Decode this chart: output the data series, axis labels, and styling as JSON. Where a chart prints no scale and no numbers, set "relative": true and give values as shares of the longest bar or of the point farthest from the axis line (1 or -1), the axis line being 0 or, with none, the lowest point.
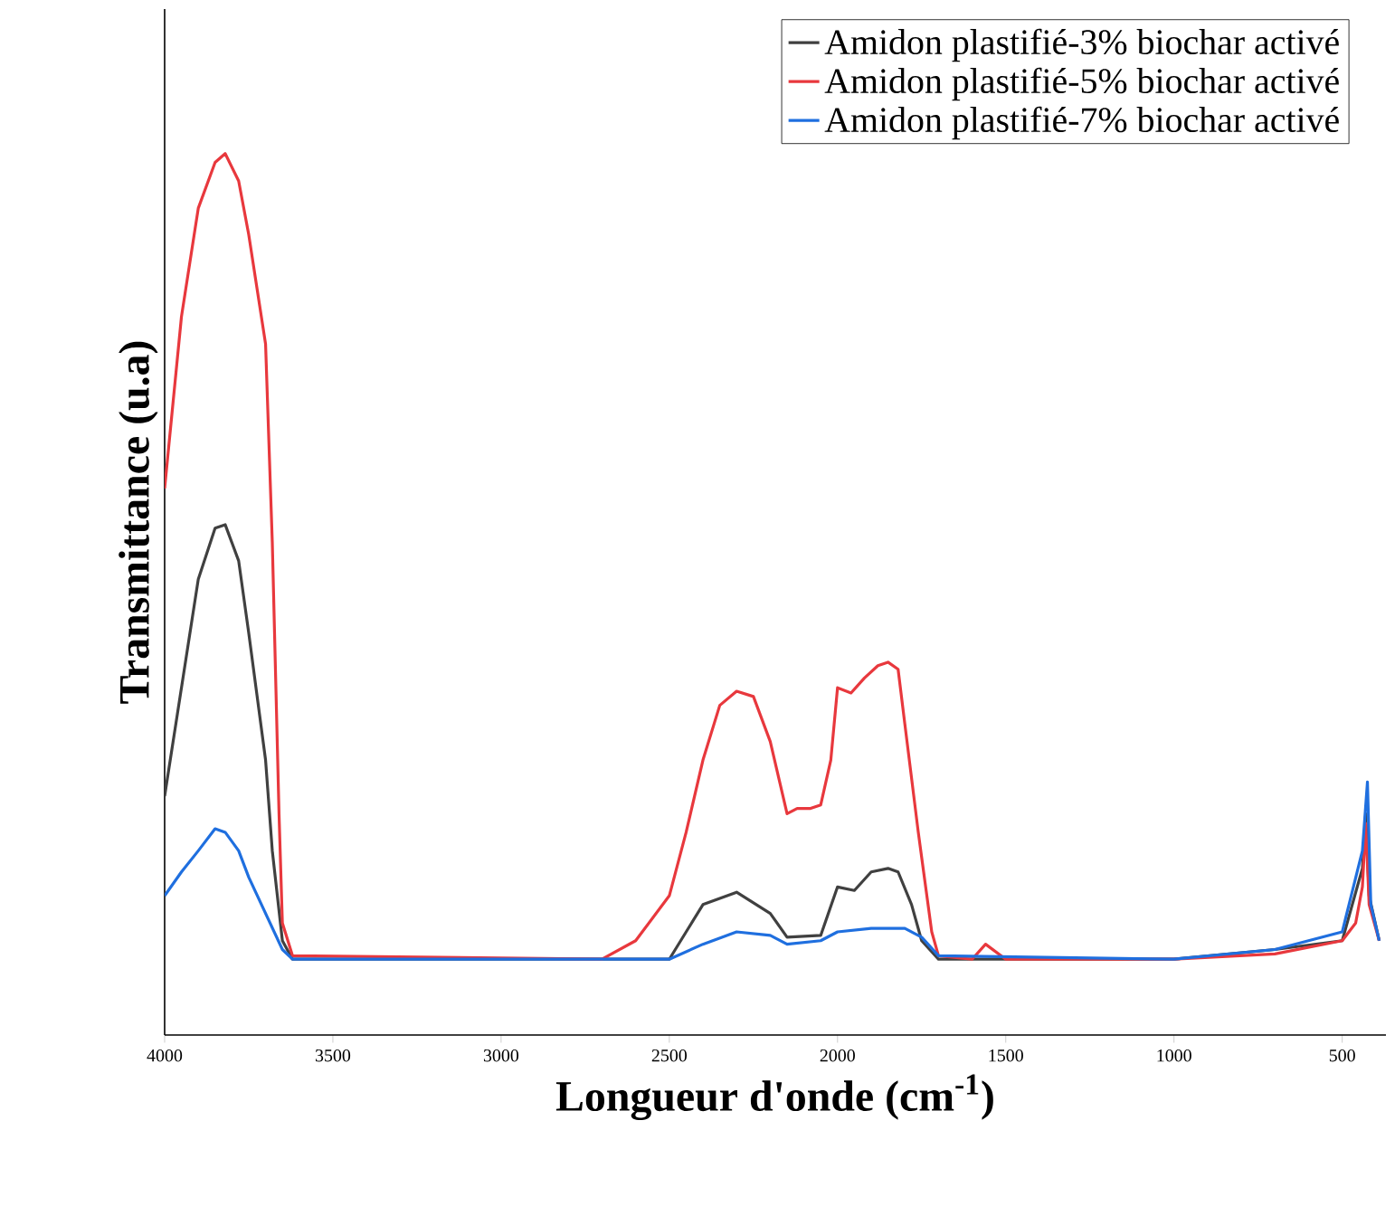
{
  "chart_data": {
    "type": "line",
    "relative": true,
    "xlabel": "Longueur d'onde (cm$^{-1}$)",
    "ylabel": "Transmittance (u.a)",
    "xlim": [
      4000,
      370
    ],
    "xticks": [
      4000,
      3500,
      3000,
      2500,
      2000,
      1500,
      1000,
      500
    ],
    "legend": "top right",
    "series": [
      {
        "name": "Amidon plastifié-3% biochar activé",
        "color": "#404040",
        "x": [
          4000,
          3950,
          3900,
          3850,
          3820,
          3780,
          3750,
          3700,
          3680,
          3650,
          3620,
          2500,
          2450,
          2400,
          2300,
          2200,
          2150,
          2050,
          2000,
          1950,
          1900,
          1850,
          1820,
          1780,
          1750,
          1700,
          1000,
          700,
          500,
          440,
          430,
          420,
          390
        ],
        "values": [
          0.271,
          0.394,
          0.517,
          0.575,
          0.579,
          0.538,
          0.456,
          0.312,
          0.209,
          0.107,
          0.086,
          0.086,
          0.117,
          0.148,
          0.162,
          0.138,
          0.111,
          0.113,
          0.168,
          0.164,
          0.185,
          0.189,
          0.185,
          0.148,
          0.107,
          0.086,
          0.086,
          0.097,
          0.107,
          0.189,
          0.251,
          0.158,
          0.107
        ]
      },
      {
        "name": "Amidon plastifié-5% biochar activé",
        "color": "#e8383d",
        "x": [
          4000,
          3950,
          3900,
          3850,
          3820,
          3780,
          3750,
          3700,
          3680,
          3660,
          3650,
          3620,
          2700,
          2600,
          2500,
          2450,
          2400,
          2350,
          2300,
          2250,
          2200,
          2150,
          2120,
          2080,
          2050,
          2020,
          2000,
          1960,
          1920,
          1880,
          1850,
          1820,
          1800,
          1760,
          1720,
          1700,
          1600,
          1560,
          1500,
          1000,
          700,
          500,
          460,
          440,
          430,
          420,
          390
        ],
        "values": [
          0.62,
          0.815,
          0.938,
          0.99,
          1.0,
          0.969,
          0.908,
          0.784,
          0.559,
          0.251,
          0.127,
          0.09,
          0.086,
          0.107,
          0.158,
          0.23,
          0.312,
          0.374,
          0.39,
          0.384,
          0.333,
          0.251,
          0.257,
          0.257,
          0.261,
          0.312,
          0.394,
          0.388,
          0.405,
          0.419,
          0.423,
          0.415,
          0.353,
          0.23,
          0.117,
          0.09,
          0.086,
          0.103,
          0.086,
          0.086,
          0.092,
          0.107,
          0.127,
          0.168,
          0.24,
          0.148,
          0.107
        ]
      },
      {
        "name": "Amidon plastifié-7% biochar activé",
        "color": "#1f6fdf",
        "x": [
          4000,
          3950,
          3900,
          3850,
          3820,
          3780,
          3750,
          3700,
          3650,
          3620,
          2500,
          2400,
          2300,
          2200,
          2150,
          2050,
          2000,
          1900,
          1800,
          1750,
          1700,
          1000,
          700,
          500,
          440,
          425,
          415,
          390
        ],
        "values": [
          0.158,
          0.185,
          0.209,
          0.234,
          0.23,
          0.209,
          0.179,
          0.138,
          0.097,
          0.086,
          0.086,
          0.103,
          0.117,
          0.113,
          0.103,
          0.107,
          0.117,
          0.121,
          0.121,
          0.111,
          0.09,
          0.086,
          0.097,
          0.117,
          0.209,
          0.287,
          0.148,
          0.107
        ]
      }
    ]
  }
}
